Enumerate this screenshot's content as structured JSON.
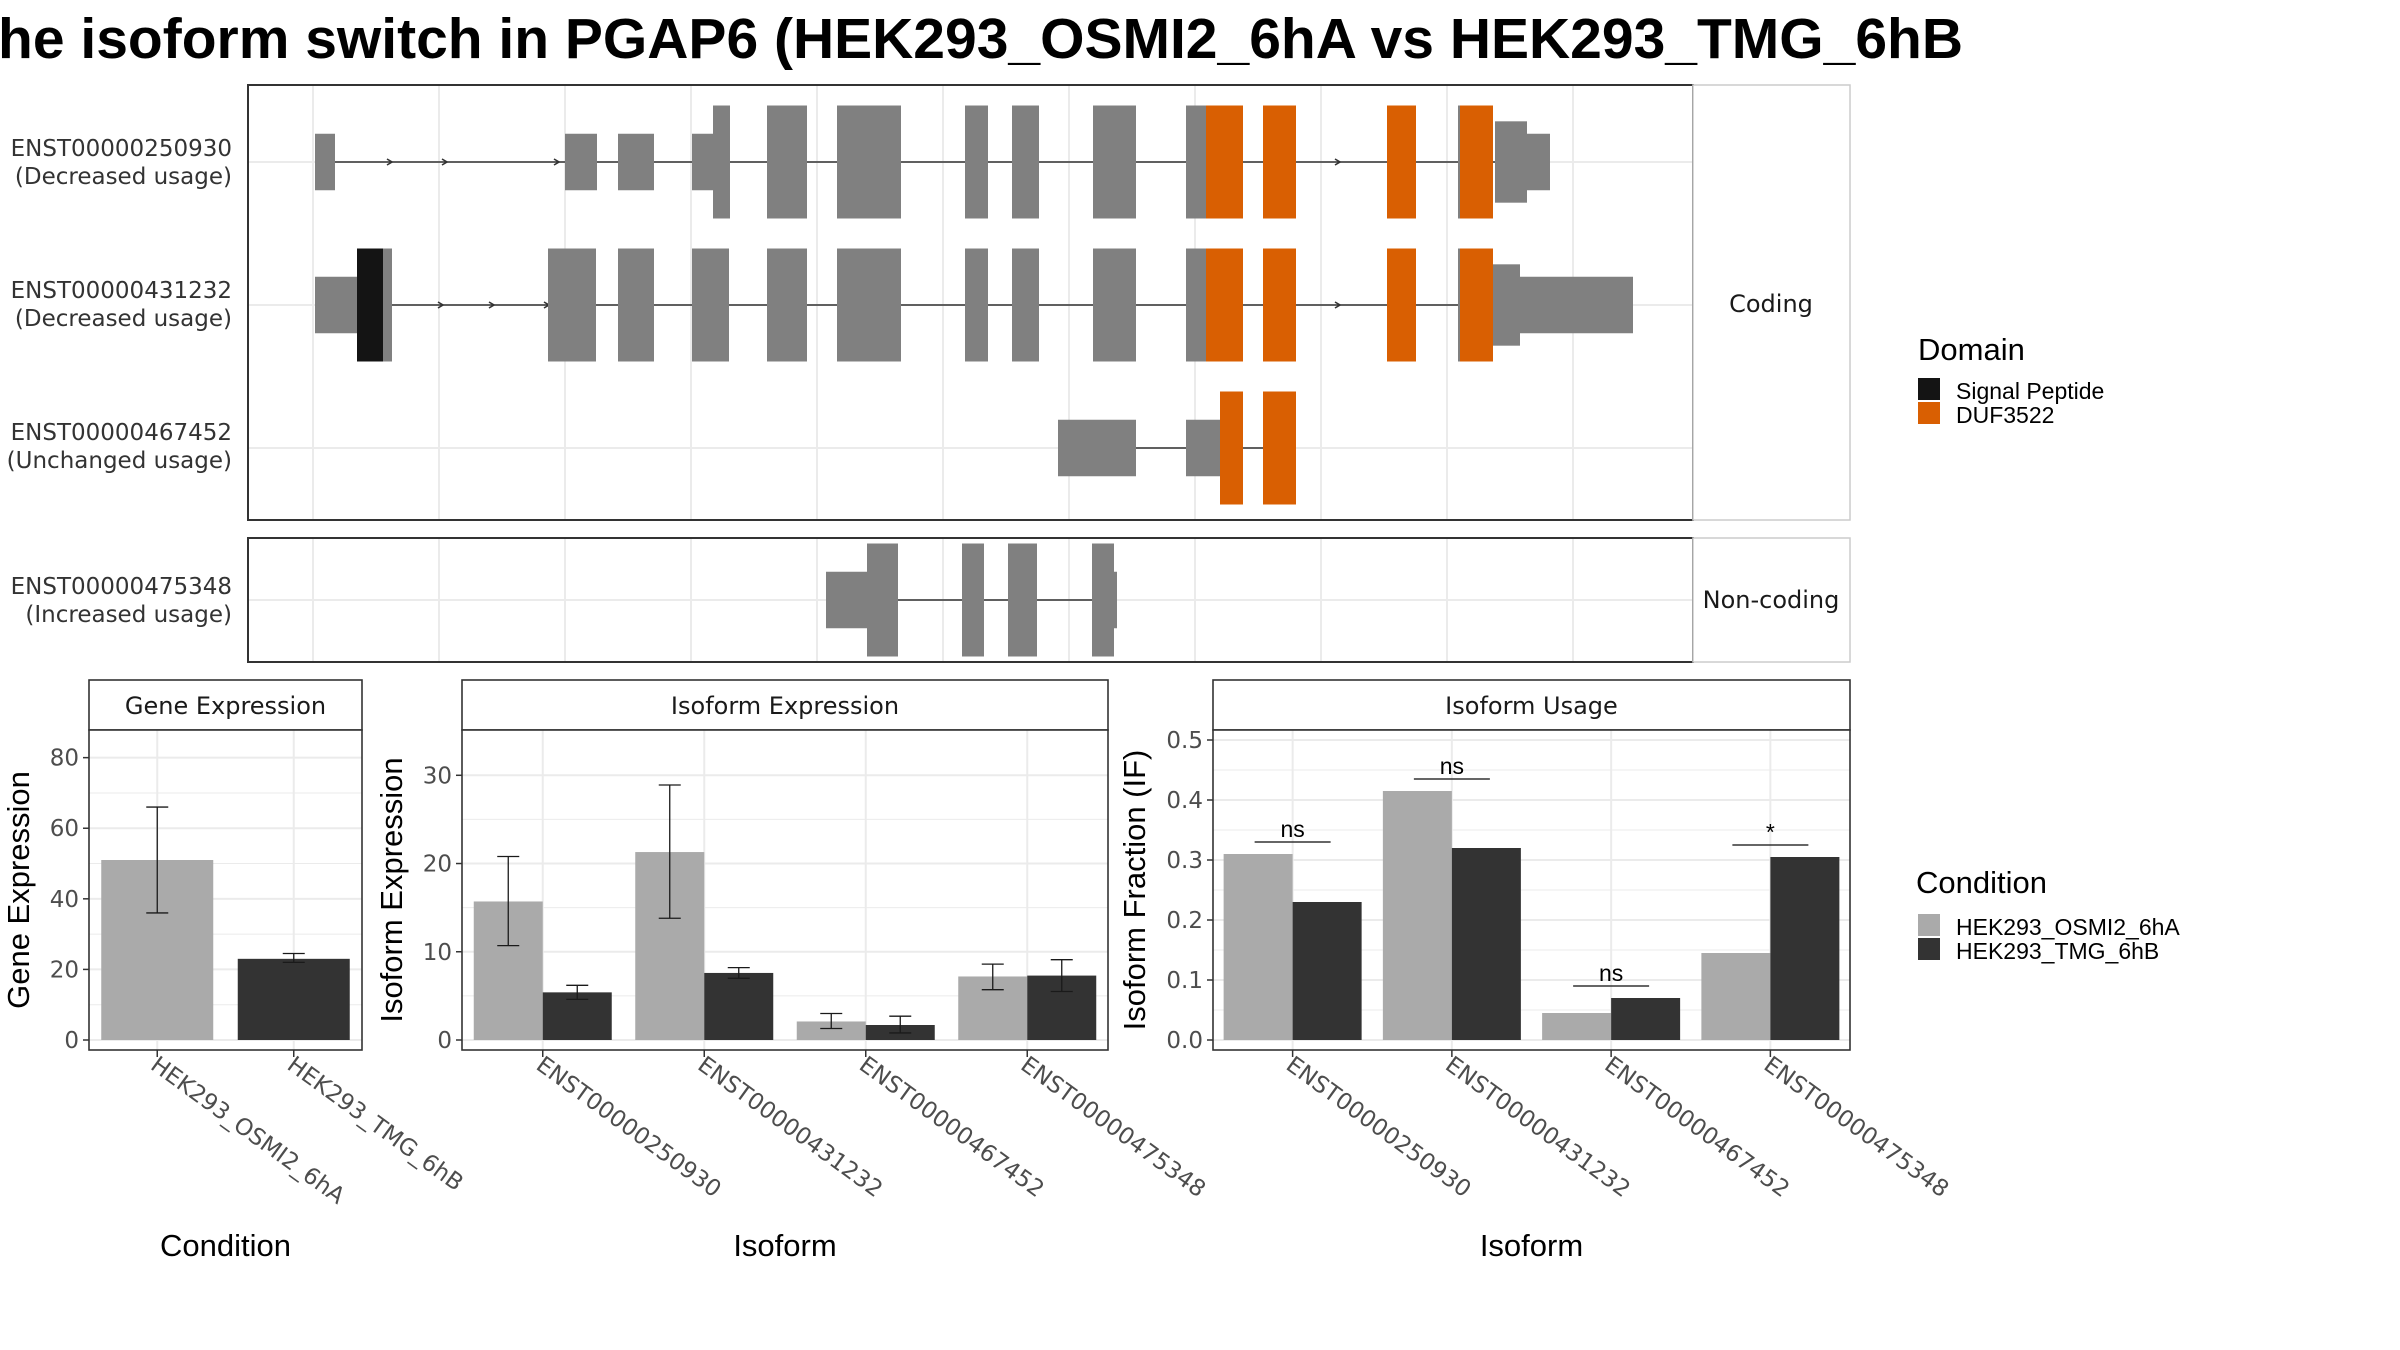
{
  "title": "he isoform switch in PGAP6 (HEK293_OSMI2_6hA vs HEK293_TMG_6hB",
  "colors": {
    "exon": "#808080",
    "signal_peptide": "#141414",
    "duf3522": "#D95F02",
    "cond_a": "#AAAAAA",
    "cond_b": "#333333",
    "grid": "#EBEBEB"
  },
  "transcripts": [
    {
      "id": "ENST00000250930",
      "usage": "(Decreased usage)",
      "group": "Coding"
    },
    {
      "id": "ENST00000431232",
      "usage": "(Decreased usage)",
      "group": "Coding"
    },
    {
      "id": "ENST00000467452",
      "usage": "(Unchanged usage)",
      "group": "Coding"
    },
    {
      "id": "ENST00000475348",
      "usage": "(Increased usage)",
      "group": "Non-coding"
    }
  ],
  "strips": {
    "coding": "Coding",
    "noncoding": "Non-coding"
  },
  "domain_legend": {
    "title": "Domain",
    "items": [
      {
        "label": "Signal Peptide",
        "color": "#141414"
      },
      {
        "label": "DUF3522",
        "color": "#D95F02"
      }
    ]
  },
  "condition_legend": {
    "title": "Condition",
    "items": [
      {
        "label": "HEK293_OSMI2_6hA",
        "color": "#AAAAAA"
      },
      {
        "label": "HEK293_TMG_6hB",
        "color": "#333333"
      }
    ]
  },
  "chart_data": [
    {
      "type": "bar",
      "title": "Gene Expression",
      "xlabel": "Condition",
      "ylabel": "Gene Expression",
      "ylim": [
        0,
        85
      ],
      "yticks": [
        0,
        20,
        40,
        60,
        80
      ],
      "categories": [
        "HEK293_OSMI2_6hA",
        "HEK293_TMG_6hB"
      ],
      "values": [
        51,
        23
      ],
      "errors": [
        [
          36,
          66
        ],
        [
          22,
          24.5
        ]
      ]
    },
    {
      "type": "bar",
      "title": "Isoform Expression",
      "xlabel": "Isoform",
      "ylabel": "Isoform Expression",
      "ylim": [
        0,
        34
      ],
      "yticks": [
        0,
        10,
        20,
        30
      ],
      "categories": [
        "ENST00000250930",
        "ENST00000431232",
        "ENST00000467452",
        "ENST00000475348"
      ],
      "series": [
        {
          "name": "HEK293_OSMI2_6hA",
          "values": [
            15.7,
            21.3,
            2.1,
            7.2
          ],
          "errors": [
            [
              10.7,
              20.8
            ],
            [
              13.8,
              28.9
            ],
            [
              1.3,
              3.0
            ],
            [
              5.7,
              8.6
            ]
          ]
        },
        {
          "name": "HEK293_TMG_6hB",
          "values": [
            5.4,
            7.6,
            1.7,
            7.3
          ],
          "errors": [
            [
              4.6,
              6.2
            ],
            [
              7.0,
              8.2
            ],
            [
              0.8,
              2.7
            ],
            [
              5.5,
              9.1
            ]
          ]
        }
      ]
    },
    {
      "type": "bar",
      "title": "Isoform Usage",
      "xlabel": "Isoform",
      "ylabel": "Isoform Fraction (IF)",
      "ylim": [
        0,
        0.5
      ],
      "yticks": [
        0.0,
        0.1,
        0.2,
        0.3,
        0.4,
        0.5
      ],
      "ytick_labels": [
        "0.0",
        "0.1",
        "0.2",
        "0.3",
        "0.4",
        "0.5"
      ],
      "categories": [
        "ENST00000250930",
        "ENST00000431232",
        "ENST00000467452",
        "ENST00000475348"
      ],
      "series": [
        {
          "name": "HEK293_OSMI2_6hA",
          "values": [
            0.31,
            0.415,
            0.045,
            0.145
          ]
        },
        {
          "name": "HEK293_TMG_6hB",
          "values": [
            0.23,
            0.32,
            0.07,
            0.305
          ]
        }
      ],
      "significance": [
        "ns",
        "ns",
        "ns",
        "*"
      ]
    }
  ]
}
